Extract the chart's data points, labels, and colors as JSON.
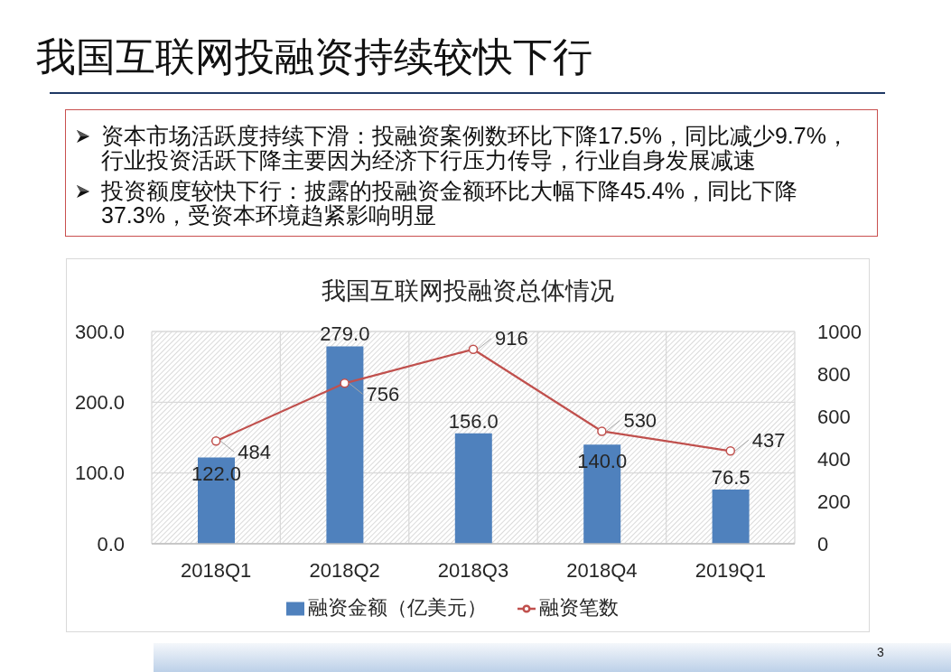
{
  "chart_data": {
    "type": "bar",
    "title": "我国互联网投融资持续较快下行",
    "subtitle": "我国互联网投融资总体情况",
    "annotations": [
      "资本市场活跃度持续下滑：投融资案例数环比下降17.5%，同比减少9.7%，行业投资活跃下降主要因为经济下行压力传导，行业自身发展减速",
      "投资额度较快下行：披露的投融资金额环比大幅下降45.4%，同比下降37.3%，受资本环境趋紧影响明显",
      "3"
    ],
    "categories": [
      "2018Q1",
      "2018Q2",
      "2018Q3",
      "2018Q4",
      "2019Q1"
    ],
    "series": [
      {
        "name": "融资金额（亿美元）",
        "color": "#4f81bd",
        "values": [
          122.0,
          279.0,
          156.0,
          140.0,
          76.5
        ],
        "value_labels": [
          "122.0",
          "279.0",
          "156.0",
          "140.0",
          "76.5"
        ]
      },
      {
        "name": "融资笔数",
        "type": "line",
        "axis": "y2",
        "color": "#c0504d",
        "values": [
          484,
          756,
          916,
          530,
          437
        ],
        "value_labels": [
          "484",
          "756",
          "916",
          "530",
          "437"
        ]
      }
    ],
    "ylim": [
      0,
      300
    ],
    "yticks": [
      {
        "value": 0,
        "label": "0.0"
      },
      {
        "value": 100,
        "label": "100.0"
      },
      {
        "value": 200,
        "label": "200.0"
      },
      {
        "value": 300,
        "label": "300.0"
      }
    ],
    "y2lim": [
      0,
      1000
    ],
    "y2ticks": [
      0,
      200,
      400,
      600,
      800,
      1000
    ],
    "grid": true,
    "legend": "bottom",
    "marker": "circle"
  }
}
